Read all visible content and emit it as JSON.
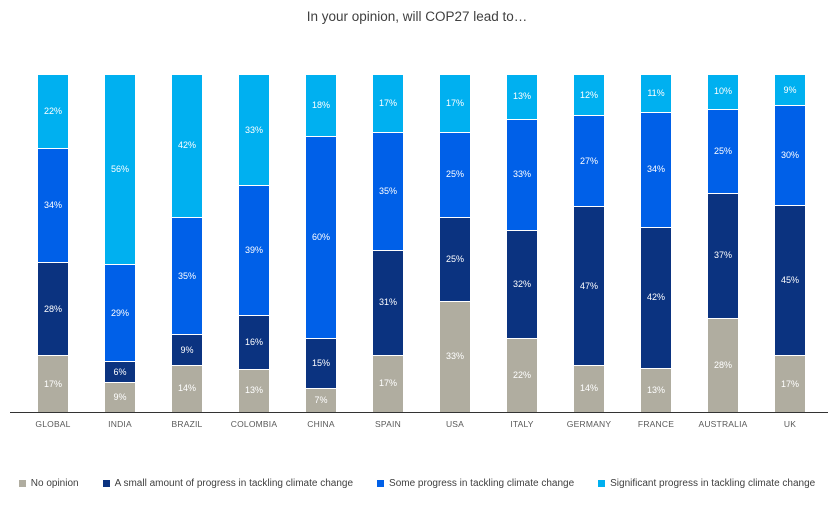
{
  "title": "In your opinion, will COP27 lead to…",
  "chart_data": {
    "type": "bar",
    "variant": "stacked-100-percent-column",
    "title": "In your opinion, will COP27 lead to…",
    "xlabel": "",
    "ylabel": "",
    "grid": false,
    "legend_position": "bottom",
    "value_suffix": "%",
    "categories": [
      "GLOBAL",
      "INDIA",
      "BRAZIL",
      "COLOMBIA",
      "CHINA",
      "SPAIN",
      "USA",
      "ITALY",
      "GERMANY",
      "FRANCE",
      "AUSTRALIA",
      "UK"
    ],
    "series": [
      {
        "name": "No opinion",
        "color": "#b0ada0",
        "values": [
          17,
          9,
          14,
          13,
          7,
          17,
          33,
          22,
          14,
          13,
          28,
          17
        ]
      },
      {
        "name": "A small amount of progress in tackling climate change",
        "color": "#0b3380",
        "values": [
          28,
          6,
          9,
          16,
          15,
          31,
          25,
          32,
          47,
          42,
          37,
          45
        ]
      },
      {
        "name": "Some progress in tackling climate change",
        "color": "#0060e8",
        "values": [
          34,
          29,
          35,
          39,
          60,
          35,
          25,
          33,
          27,
          34,
          25,
          30
        ]
      },
      {
        "name": "Significant progress in tackling climate change",
        "color": "#00b0f0",
        "values": [
          22,
          56,
          42,
          33,
          18,
          17,
          17,
          13,
          12,
          11,
          10,
          9
        ]
      }
    ],
    "colors": {
      "title_text": "#404040",
      "axis_line": "#333333",
      "category_label_text": "#595959",
      "segment_label_text": "#ffffff",
      "background": "#ffffff"
    }
  }
}
